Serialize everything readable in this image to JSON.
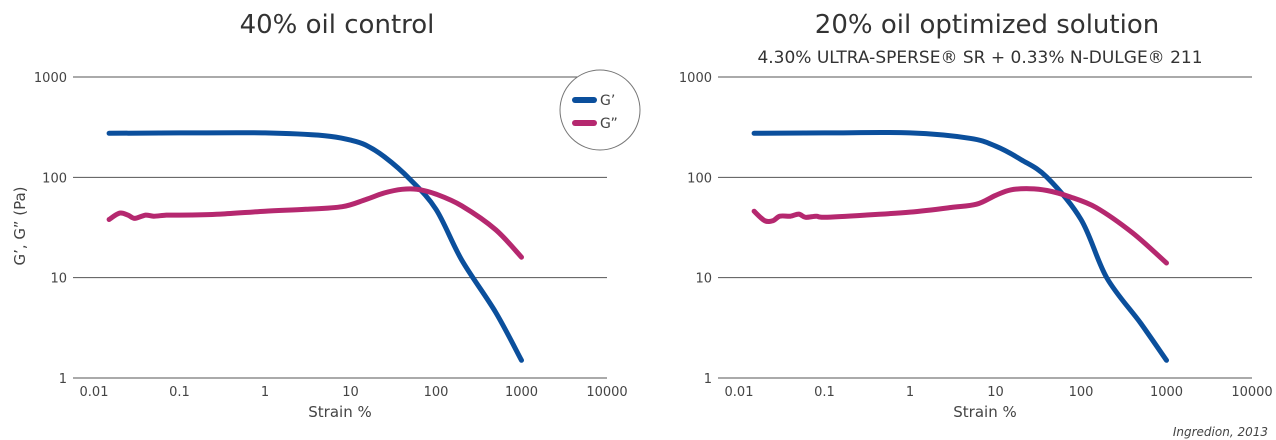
{
  "credit": "Ingredion, 2013",
  "colors": {
    "g_prime": "#0b4f9c",
    "g_double_prime": "#b5286f",
    "grid": "#555555"
  },
  "legend": {
    "g_prime": "G’",
    "g_double_prime": "G”"
  },
  "chart_data": [
    {
      "type": "line",
      "title": "40% oil control",
      "subtitle": "",
      "xlabel": "Strain %",
      "ylabel": "G’, G” (Pa)",
      "xscale": "log",
      "yscale": "log",
      "xlim": [
        0.01,
        10000
      ],
      "ylim": [
        1,
        1000
      ],
      "x_ticks": [
        "0.01",
        "0.1",
        "1",
        "10",
        "100",
        "1000",
        "10000"
      ],
      "y_ticks": [
        "1",
        "10",
        "100",
        "1000"
      ],
      "grid": "horizontal",
      "legend_position": "top-right",
      "series": [
        {
          "name": "G’",
          "color": "#0b4f9c",
          "points": [
            [
              0.015,
              275
            ],
            [
              0.1,
              277
            ],
            [
              1,
              277
            ],
            [
              5,
              260
            ],
            [
              10,
              235
            ],
            [
              15,
              210
            ],
            [
              25,
              160
            ],
            [
              50,
              95
            ],
            [
              100,
              48
            ],
            [
              200,
              15
            ],
            [
              500,
              4.5
            ],
            [
              1000,
              1.5
            ]
          ]
        },
        {
          "name": "G”",
          "color": "#b5286f",
          "points": [
            [
              0.015,
              38
            ],
            [
              0.02,
              44
            ],
            [
              0.025,
              42
            ],
            [
              0.03,
              39
            ],
            [
              0.04,
              42
            ],
            [
              0.05,
              41
            ],
            [
              0.07,
              42
            ],
            [
              0.1,
              42
            ],
            [
              0.3,
              43
            ],
            [
              1,
              46
            ],
            [
              3,
              48
            ],
            [
              8,
              51
            ],
            [
              15,
              60
            ],
            [
              25,
              70
            ],
            [
              40,
              76
            ],
            [
              60,
              76
            ],
            [
              100,
              68
            ],
            [
              200,
              52
            ],
            [
              500,
              30
            ],
            [
              1000,
              16
            ]
          ]
        }
      ]
    },
    {
      "type": "line",
      "title": "20% oil optimized solution",
      "subtitle": "4.30% ULTRA-SPERSE® SR + 0.33% N-DULGE® 211",
      "xlabel": "Strain %",
      "ylabel": "",
      "xscale": "log",
      "yscale": "log",
      "xlim": [
        0.01,
        10000
      ],
      "ylim": [
        1,
        1000
      ],
      "x_ticks": [
        "0.01",
        "0.1",
        "1",
        "10",
        "100",
        "1000",
        "10000"
      ],
      "y_ticks": [
        "1",
        "10",
        "100",
        "1000"
      ],
      "grid": "horizontal",
      "legend_position": "none",
      "series": [
        {
          "name": "G’",
          "color": "#0b4f9c",
          "points": [
            [
              0.015,
              275
            ],
            [
              0.1,
              277
            ],
            [
              1,
              277
            ],
            [
              5,
              245
            ],
            [
              10,
              205
            ],
            [
              20,
              150
            ],
            [
              40,
              100
            ],
            [
              100,
              38
            ],
            [
              200,
              10
            ],
            [
              500,
              3.5
            ],
            [
              1000,
              1.5
            ]
          ]
        },
        {
          "name": "G”",
          "color": "#b5286f",
          "points": [
            [
              0.015,
              46
            ],
            [
              0.02,
              37
            ],
            [
              0.025,
              37
            ],
            [
              0.03,
              41
            ],
            [
              0.04,
              41
            ],
            [
              0.05,
              43
            ],
            [
              0.06,
              40
            ],
            [
              0.08,
              41
            ],
            [
              0.1,
              40
            ],
            [
              0.3,
              42
            ],
            [
              1,
              45
            ],
            [
              3,
              50
            ],
            [
              6,
              54
            ],
            [
              10,
              66
            ],
            [
              15,
              75
            ],
            [
              25,
              77
            ],
            [
              40,
              74
            ],
            [
              70,
              65
            ],
            [
              150,
              50
            ],
            [
              400,
              28
            ],
            [
              1000,
              14
            ]
          ]
        }
      ]
    }
  ]
}
